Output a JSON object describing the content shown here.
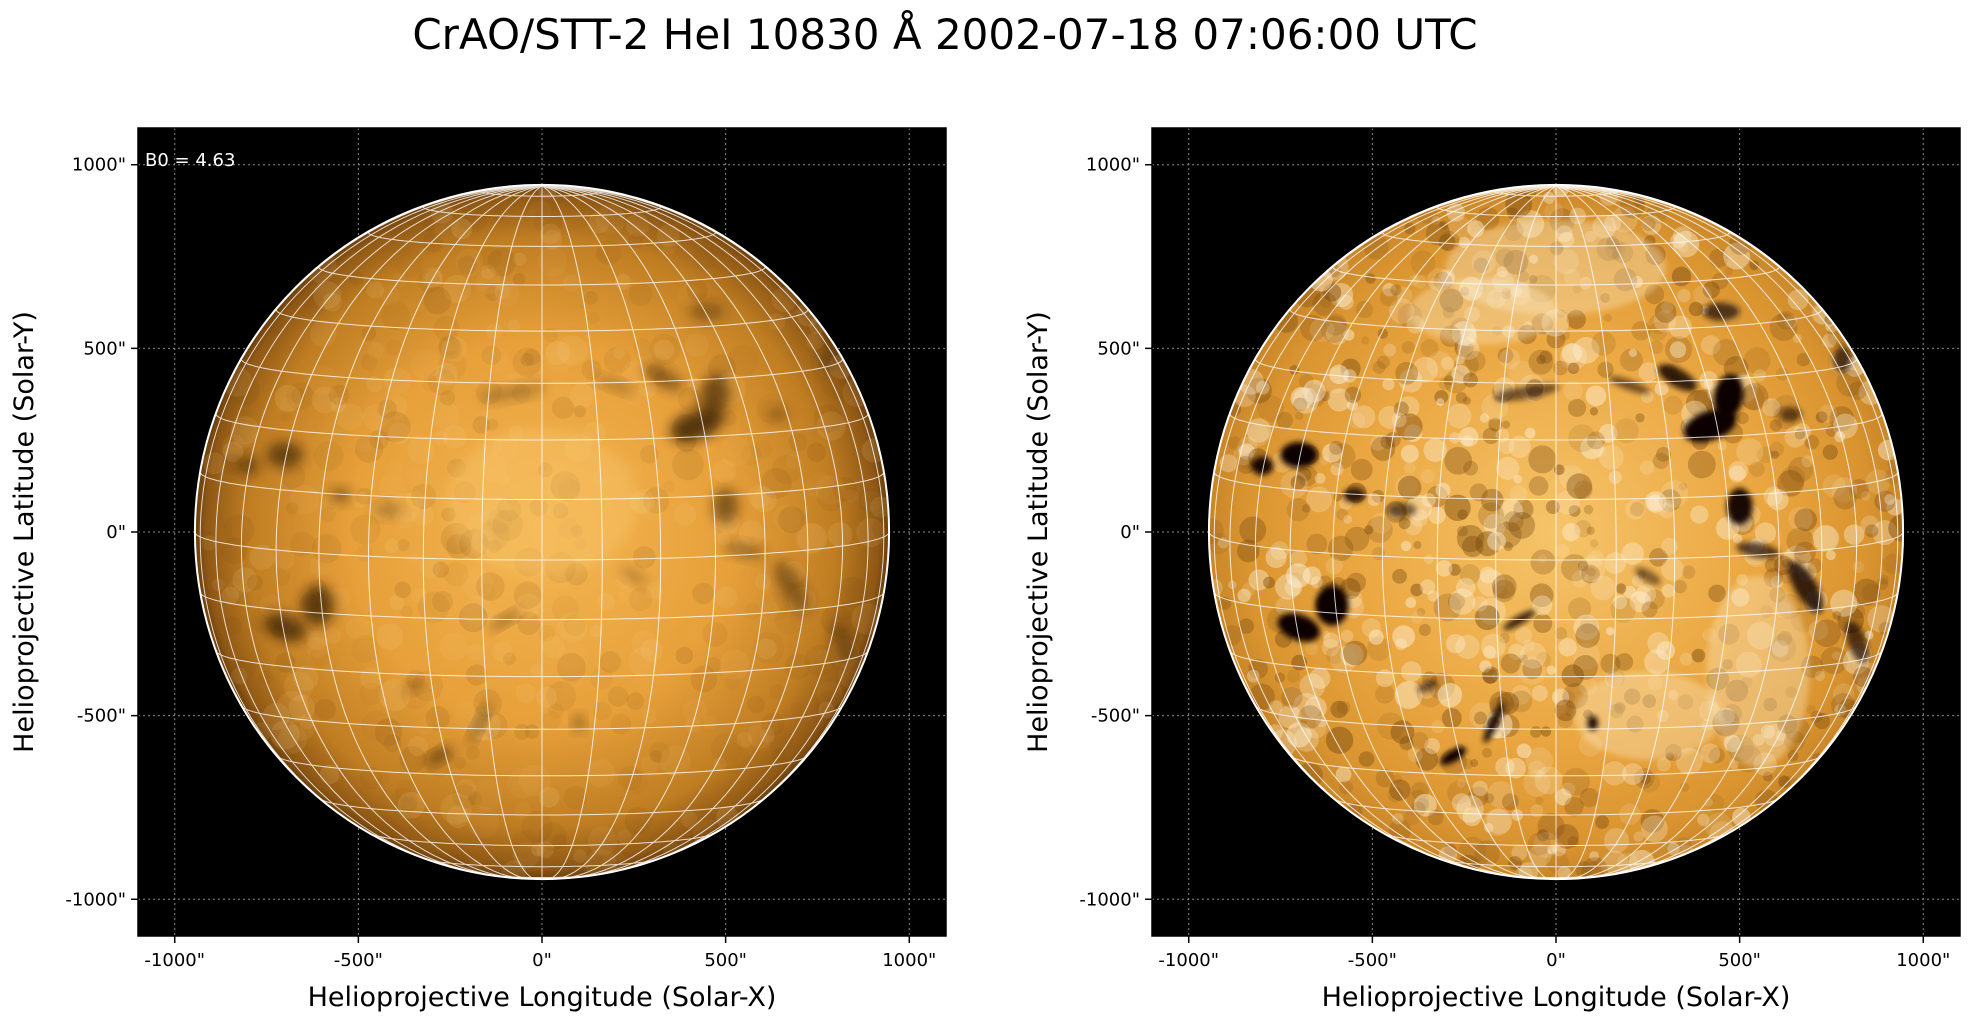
{
  "figure": {
    "title": "CrAO/STT-2 HeI 10830 Å 2002-07-18 07:06:00 UTC"
  },
  "colors": {
    "background": "#000000",
    "disk_center": "#f2b24a",
    "disk_limb": "#6a3e0c",
    "grid": "#ffffff",
    "limb": "#ffffff"
  },
  "panels": [
    {
      "name": "left",
      "annotation": "B0 = 4.63",
      "xlabel": "Helioprojective Longitude (Solar-X)",
      "ylabel": "Helioprojective Latitude (Solar-Y)",
      "x_ticks": [
        "-1000\"",
        "-500\"",
        "0\"",
        "500\"",
        "1000\""
      ],
      "y_ticks": [
        "1000\"",
        "500\"",
        "0\"",
        "-500\"",
        "-1000\""
      ],
      "contrast": "normal"
    },
    {
      "name": "right",
      "annotation": "",
      "xlabel": "Helioprojective Longitude (Solar-X)",
      "ylabel": "Helioprojective Latitude (Solar-Y)",
      "x_ticks": [
        "-1000\"",
        "-500\"",
        "0\"",
        "500\"",
        "1000\""
      ],
      "y_ticks": [
        "1000\"",
        "500\"",
        "0\"",
        "-500\"",
        "-1000\""
      ],
      "contrast": "enhanced"
    }
  ],
  "axes": {
    "x_range_arcsec": [
      -1100,
      1100
    ],
    "y_range_arcsec": [
      -1100,
      1100
    ],
    "tick_values_arcsec": [
      -1000,
      -500,
      0,
      500,
      1000
    ],
    "solar_radius_arcsec": 945
  }
}
